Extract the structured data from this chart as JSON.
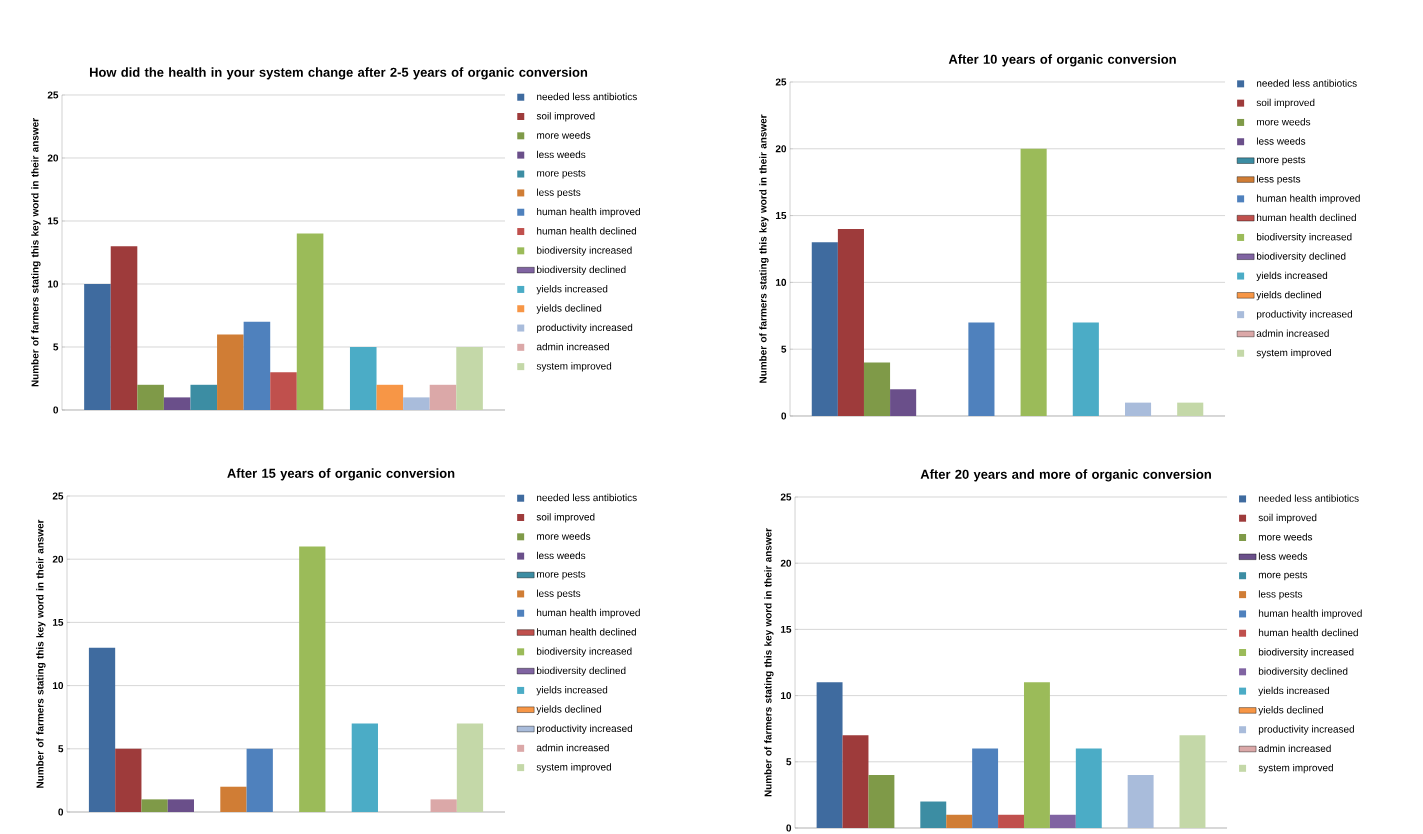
{
  "chart_data": [
    {
      "type": "bar",
      "title": "How did the health in your system change after 2-5 years of organic conversion",
      "ylabel": "Number of farmers stating this key word in their answer",
      "categories": [
        null
      ],
      "ylim": [
        0,
        25
      ],
      "yticks": [
        0,
        5,
        10,
        15,
        20,
        25
      ],
      "grid": "y",
      "legend": "right",
      "tick_labels": "y",
      "series": [
        {
          "name": "needed less antibiotics",
          "color": "#3f6b9f",
          "values": [
            10
          ]
        },
        {
          "name": "soil improved",
          "color": "#9e3b3b",
          "values": [
            13
          ]
        },
        {
          "name": "more weeds",
          "color": "#7f9a48",
          "values": [
            2
          ]
        },
        {
          "name": "less weeds",
          "color": "#6a4f8a",
          "values": [
            1
          ]
        },
        {
          "name": "more pests",
          "color": "#3c8da3",
          "values": [
            2
          ]
        },
        {
          "name": "less pests",
          "color": "#d07d35",
          "values": [
            6
          ]
        },
        {
          "name": "human health improved",
          "color": "#4f81bd",
          "values": [
            7
          ]
        },
        {
          "name": "human health declined",
          "color": "#c0504d",
          "values": [
            3
          ]
        },
        {
          "name": "biodiversity increased",
          "color": "#9bbb59",
          "values": [
            14
          ]
        },
        {
          "name": "biodiversity declined",
          "color": "#8064a2",
          "values": [
            null
          ]
        },
        {
          "name": "yields increased",
          "color": "#4bacc6",
          "values": [
            5
          ]
        },
        {
          "name": "yields declined",
          "color": "#f79646",
          "values": [
            2
          ]
        },
        {
          "name": "productivity increased",
          "color": "#a9bcdb",
          "values": [
            1
          ]
        },
        {
          "name": "admin increased",
          "color": "#dba8a8",
          "values": [
            2
          ]
        },
        {
          "name": "system improved",
          "color": "#c4d8a8",
          "values": [
            5
          ]
        }
      ]
    },
    {
      "type": "bar",
      "title": "After 10 years of organic conversion",
      "ylabel": "Number of farmers stating this key word in their answer",
      "categories": [
        null
      ],
      "ylim": [
        0,
        25
      ],
      "yticks": [
        0,
        5,
        10,
        15,
        20,
        25
      ],
      "grid": "y",
      "legend": "right",
      "tick_labels": "y",
      "series": [
        {
          "name": "needed less antibiotics",
          "color": "#3f6b9f",
          "values": [
            13
          ]
        },
        {
          "name": "soil improved",
          "color": "#9e3b3b",
          "values": [
            14
          ]
        },
        {
          "name": "more weeds",
          "color": "#7f9a48",
          "values": [
            4
          ]
        },
        {
          "name": "less weeds",
          "color": "#6a4f8a",
          "values": [
            2
          ]
        },
        {
          "name": "more pests",
          "color": "#3c8da3",
          "values": [
            null
          ]
        },
        {
          "name": "less pests",
          "color": "#d07d35",
          "values": [
            null
          ]
        },
        {
          "name": "human health improved",
          "color": "#4f81bd",
          "values": [
            7
          ]
        },
        {
          "name": "human health declined",
          "color": "#c0504d",
          "values": [
            null
          ]
        },
        {
          "name": "biodiversity increased",
          "color": "#9bbb59",
          "values": [
            20
          ]
        },
        {
          "name": "biodiversity declined",
          "color": "#8064a2",
          "values": [
            null
          ]
        },
        {
          "name": "yields increased",
          "color": "#4bacc6",
          "values": [
            7
          ]
        },
        {
          "name": "yields declined",
          "color": "#f79646",
          "values": [
            null
          ]
        },
        {
          "name": "productivity increased",
          "color": "#a9bcdb",
          "values": [
            1
          ]
        },
        {
          "name": "admin increased",
          "color": "#dba8a8",
          "values": [
            null
          ]
        },
        {
          "name": "system improved",
          "color": "#c4d8a8",
          "values": [
            1
          ]
        }
      ]
    },
    {
      "type": "bar",
      "title": "After 15 years of organic conversion",
      "ylabel": "Number of farmers stating this key word in their answer",
      "categories": [
        null
      ],
      "ylim": [
        0,
        25
      ],
      "yticks": [
        0,
        5,
        10,
        15,
        20,
        25
      ],
      "grid": "y",
      "legend": "right",
      "tick_labels": "y",
      "series": [
        {
          "name": "needed less antibiotics",
          "color": "#3f6b9f",
          "values": [
            13
          ]
        },
        {
          "name": "soil improved",
          "color": "#9e3b3b",
          "values": [
            5
          ]
        },
        {
          "name": "more weeds",
          "color": "#7f9a48",
          "values": [
            1
          ]
        },
        {
          "name": "less weeds",
          "color": "#6a4f8a",
          "values": [
            1
          ]
        },
        {
          "name": "more pests",
          "color": "#3c8da3",
          "values": [
            null
          ]
        },
        {
          "name": "less pests",
          "color": "#d07d35",
          "values": [
            2
          ]
        },
        {
          "name": "human health improved",
          "color": "#4f81bd",
          "values": [
            5
          ]
        },
        {
          "name": "human health declined",
          "color": "#c0504d",
          "values": [
            null
          ]
        },
        {
          "name": "biodiversity increased",
          "color": "#9bbb59",
          "values": [
            21
          ]
        },
        {
          "name": "biodiversity declined",
          "color": "#8064a2",
          "values": [
            null
          ]
        },
        {
          "name": "yields increased",
          "color": "#4bacc6",
          "values": [
            7
          ]
        },
        {
          "name": "yields declined",
          "color": "#f79646",
          "values": [
            null
          ]
        },
        {
          "name": "productivity increased",
          "color": "#a9bcdb",
          "values": [
            null
          ]
        },
        {
          "name": "admin increased",
          "color": "#dba8a8",
          "values": [
            1
          ]
        },
        {
          "name": "system improved",
          "color": "#c4d8a8",
          "values": [
            7
          ]
        }
      ]
    },
    {
      "type": "bar",
      "title": "After 20 years and more of organic conversion",
      "ylabel": "Number of farmers stating this key word in their answer",
      "categories": [
        null
      ],
      "ylim": [
        0,
        25
      ],
      "yticks": [
        0,
        5,
        10,
        15,
        20,
        25
      ],
      "grid": "y",
      "legend": "right",
      "tick_labels": "y",
      "series": [
        {
          "name": "needed less antibiotics",
          "color": "#3f6b9f",
          "values": [
            11
          ]
        },
        {
          "name": "soil improved",
          "color": "#9e3b3b",
          "values": [
            7
          ]
        },
        {
          "name": "more weeds",
          "color": "#7f9a48",
          "values": [
            4
          ]
        },
        {
          "name": "less weeds",
          "color": "#6a4f8a",
          "values": [
            null
          ]
        },
        {
          "name": "more pests",
          "color": "#3c8da3",
          "values": [
            2
          ]
        },
        {
          "name": "less pests",
          "color": "#d07d35",
          "values": [
            1
          ]
        },
        {
          "name": "human health improved",
          "color": "#4f81bd",
          "values": [
            6
          ]
        },
        {
          "name": "human health declined",
          "color": "#c0504d",
          "values": [
            1
          ]
        },
        {
          "name": "biodiversity increased",
          "color": "#9bbb59",
          "values": [
            11
          ]
        },
        {
          "name": "biodiversity declined",
          "color": "#8064a2",
          "values": [
            1
          ]
        },
        {
          "name": "yields increased",
          "color": "#4bacc6",
          "values": [
            6
          ]
        },
        {
          "name": "yields declined",
          "color": "#f79646",
          "values": [
            null
          ]
        },
        {
          "name": "productivity increased",
          "color": "#a9bcdb",
          "values": [
            4
          ]
        },
        {
          "name": "admin increased",
          "color": "#dba8a8",
          "values": [
            null
          ]
        },
        {
          "name": "system improved",
          "color": "#c4d8a8",
          "values": [
            7
          ]
        }
      ]
    }
  ]
}
